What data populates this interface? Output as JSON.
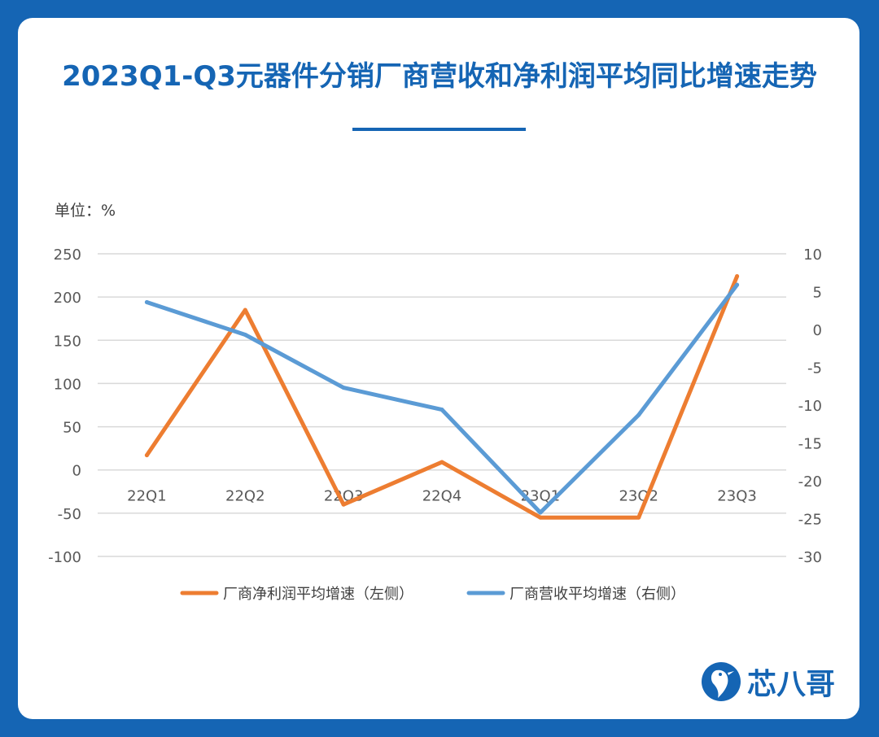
{
  "title": "2023Q1-Q3元器件分销厂商营收和净利润平均同比增速走势",
  "brand": "芯八哥",
  "colors": {
    "background": "#1565b4",
    "title": "#1565b4",
    "series_profit": "#ed7d31",
    "series_revenue": "#5b9bd5",
    "grid": "#d9d9d9",
    "tick": "#595959"
  },
  "chart_data": {
    "type": "line",
    "unit_label": "单位：%",
    "categories": [
      "22Q1",
      "22Q2",
      "22Q3",
      "22Q4",
      "23Q1",
      "23Q2",
      "23Q3"
    ],
    "series": [
      {
        "name": "厂商净利润平均增速（左侧）",
        "axis": "left",
        "values": [
          17,
          185,
          -40,
          9,
          -55,
          -55,
          224
        ]
      },
      {
        "name": "厂商营收平均增速（右侧）",
        "axis": "right",
        "values": [
          3.6,
          -0.7,
          -7.7,
          -10.6,
          -24.2,
          -11.3,
          5.9
        ]
      }
    ],
    "left_axis": {
      "min": -100,
      "max": 250,
      "ticks": [
        "250",
        "200",
        "150",
        "100",
        "50",
        "0",
        "-50",
        "-100"
      ]
    },
    "right_axis": {
      "min": -30,
      "max": 10,
      "ticks": [
        "10",
        "5",
        "0",
        "-5",
        "-10",
        "-15",
        "-20",
        "-25",
        "-30"
      ]
    },
    "grid": true,
    "legend_position": "bottom"
  }
}
